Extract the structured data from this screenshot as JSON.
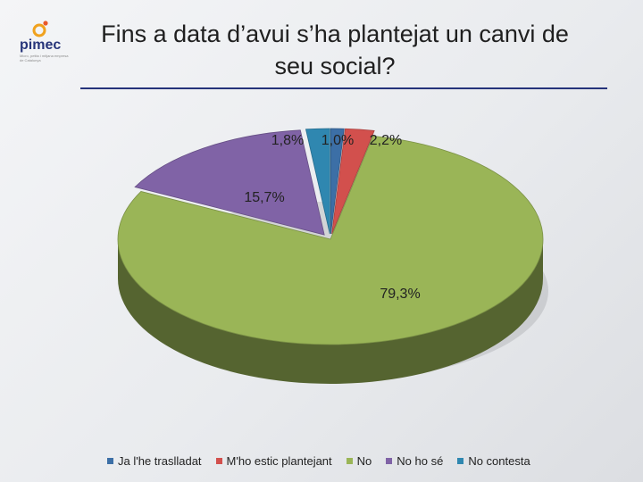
{
  "brand": {
    "name": "pimec",
    "tagline": "Micro, petita i mitjana empresa de Catalunya"
  },
  "title": "Fins a data d’avui s’ha plantejat un canvi de seu social?",
  "colors": {
    "rule": "#25337a",
    "brand_orange": "#f0a21f"
  },
  "chart_data": {
    "type": "pie",
    "style": "3d-exploded",
    "categories": [
      "Ja l'he traslladat",
      "M'ho estic plantejant",
      "No",
      "No ho sé",
      "No contesta"
    ],
    "values": [
      1.0,
      2.2,
      79.3,
      15.7,
      1.8
    ],
    "labels": [
      "1,0%",
      "2,2%",
      "79,3%",
      "15,7%",
      "1,8%"
    ],
    "colors": [
      "#3c6fa6",
      "#d2504d",
      "#9ab557",
      "#8063a6",
      "#2f87b0"
    ],
    "title": "",
    "legend": "bottom",
    "start_angle_deg": 90,
    "direction": "clockwise"
  }
}
